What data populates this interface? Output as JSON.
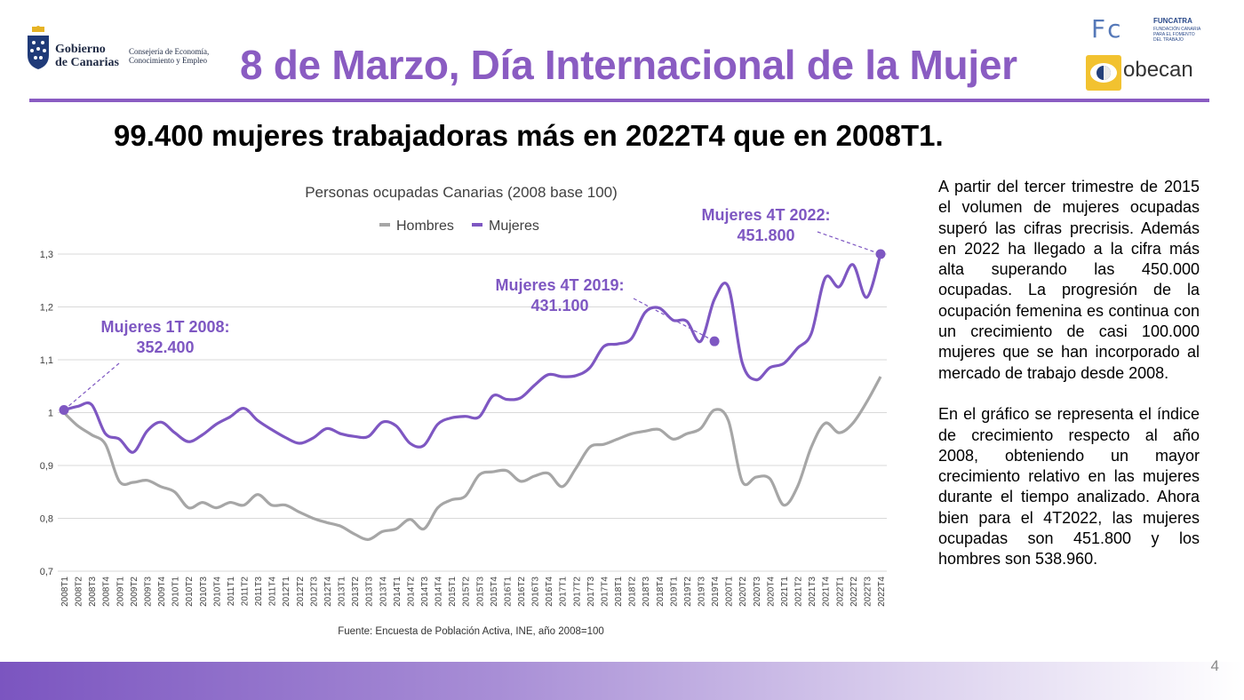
{
  "header": {
    "org_line1": "Gobierno",
    "org_line2": "de Canarias",
    "consejeria_line1": "Consejería de Economía,",
    "consejeria_line2": "Conocimiento y Empleo",
    "title": "8 de Marzo, Día Internacional de la Mujer",
    "partner1_letters": "Fc",
    "partner1_name": "FUNCATRA",
    "partner1_sub1": "FUNDACIÓN CANARIA",
    "partner1_sub2": "PARA EL FOMENTO",
    "partner1_sub3": "DEL TRABAJO",
    "partner2_name": "obecan"
  },
  "subtitle": "99.400 mujeres trabajadoras más en 2022T4 que en 2008T1.",
  "body": {
    "paragraph1": "A partir del tercer trimestre de 2015 el volumen de mujeres ocupadas superó las cifras precrisis. Además en 2022 ha llegado a la cifra más alta superando las 450.000 ocupadas. La progresión de la ocupación femenina es continua con un crecimiento de casi 100.000 mujeres que se han incorporado al mercado de trabajo desde 2008.",
    "paragraph2": "En el gráfico se representa el índice de crecimiento respecto al año 2008, obteniendo un mayor crecimiento relativo en las mujeres durante el tiempo analizado. Ahora bien para el 4T2022, las mujeres ocupadas son 451.800 y los hombres son 538.960."
  },
  "page_number": "4",
  "colors": {
    "accent": "#8a5cc2",
    "hombres": "#a6a6a6",
    "mujeres": "#7e57c2",
    "annotation": "#7e57c2",
    "grid": "#d9d9d9"
  },
  "chart_data": {
    "type": "line",
    "title": "Personas ocupadas Canarias (2008 base 100)",
    "source": "Fuente: Encuesta de Población Activa, INE,  año 2008=100",
    "legend_position": "top-center",
    "grid": true,
    "ylim": [
      0.7,
      1.3
    ],
    "yticks": [
      "0,7",
      "0,8",
      "0,9",
      "1",
      "1,1",
      "1,2",
      "1,3"
    ],
    "x": [
      "2008T1",
      "2008T2",
      "2008T3",
      "2008T4",
      "2009T1",
      "2009T2",
      "2009T3",
      "2009T4",
      "2010T1",
      "2010T2",
      "2010T3",
      "2010T4",
      "2011T1",
      "2011T2",
      "2011T3",
      "2011T4",
      "2012T1",
      "2012T2",
      "2012T3",
      "2012T4",
      "2013T1",
      "2013T2",
      "2013T3",
      "2013T4",
      "2014T1",
      "2014T2",
      "2014T3",
      "2014T4",
      "2015T1",
      "2015T2",
      "2015T3",
      "2015T4",
      "2016T1",
      "2016T2",
      "2016T3",
      "2016T4",
      "2017T1",
      "2017T2",
      "2017T3",
      "2017T4",
      "2018T1",
      "2018T2",
      "2018T3",
      "2018T4",
      "2019T1",
      "2019T2",
      "2019T3",
      "2019T4",
      "2020T1",
      "2020T2",
      "2020T3",
      "2020T4",
      "2021T1",
      "2021T2",
      "2021T3",
      "2021T4",
      "2022T1",
      "2022T2",
      "2022T3",
      "2022T4"
    ],
    "series": [
      {
        "name": "Hombres",
        "values": [
          1.0,
          0.975,
          0.958,
          0.94,
          0.87,
          0.868,
          0.872,
          0.86,
          0.85,
          0.82,
          0.83,
          0.82,
          0.83,
          0.825,
          0.845,
          0.825,
          0.825,
          0.812,
          0.8,
          0.792,
          0.785,
          0.77,
          0.76,
          0.775,
          0.78,
          0.798,
          0.78,
          0.82,
          0.835,
          0.842,
          0.882,
          0.888,
          0.89,
          0.87,
          0.88,
          0.885,
          0.86,
          0.895,
          0.935,
          0.94,
          0.95,
          0.96,
          0.965,
          0.968,
          0.95,
          0.96,
          0.97,
          1.005,
          0.985,
          0.87,
          0.878,
          0.875,
          0.825,
          0.86,
          0.935,
          0.98,
          0.962,
          0.98,
          1.02,
          1.068
        ]
      },
      {
        "name": "Mujeres",
        "values": [
          1.005,
          1.012,
          1.015,
          0.96,
          0.95,
          0.925,
          0.965,
          0.982,
          0.962,
          0.945,
          0.958,
          0.978,
          0.992,
          1.008,
          0.985,
          0.968,
          0.953,
          0.942,
          0.952,
          0.97,
          0.96,
          0.955,
          0.955,
          0.982,
          0.975,
          0.942,
          0.938,
          0.978,
          0.99,
          0.993,
          0.992,
          1.032,
          1.025,
          1.028,
          1.052,
          1.072,
          1.068,
          1.07,
          1.085,
          1.125,
          1.13,
          1.14,
          1.19,
          1.198,
          1.175,
          1.173,
          1.135,
          1.215,
          1.238,
          1.095,
          1.062,
          1.085,
          1.093,
          1.122,
          1.15,
          1.255,
          1.238,
          1.28,
          1.218,
          1.3
        ]
      }
    ],
    "annotations": [
      {
        "label": "Mujeres 1T 2008:",
        "value": "352.400",
        "x": "2008T1",
        "y": 1.005
      },
      {
        "label": "Mujeres 4T 2019:",
        "value": "431.100",
        "x": "2019T4",
        "y": 1.135
      },
      {
        "label": "Mujeres 4T 2022:",
        "value": "451.800",
        "x": "2022T4",
        "y": 1.3
      }
    ]
  }
}
